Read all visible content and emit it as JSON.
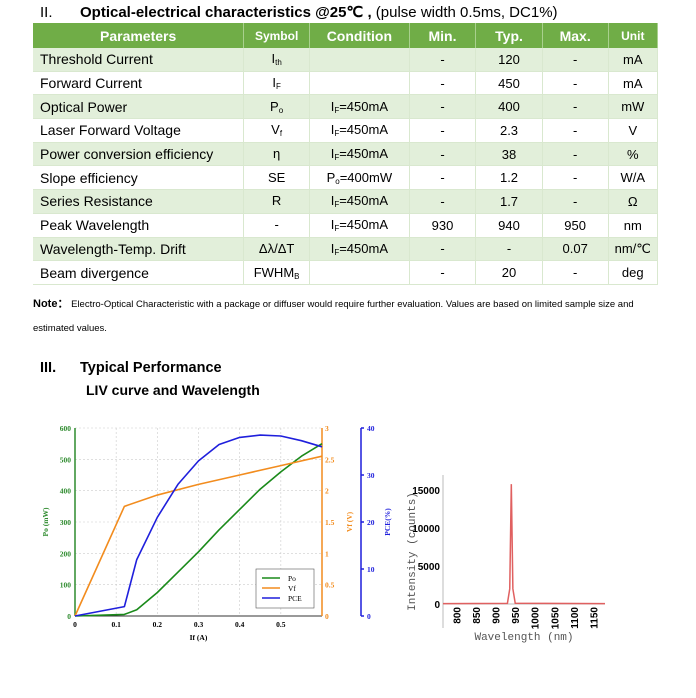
{
  "section2": {
    "number": "II.",
    "title": "Optical-electrical characteristics @25℃ ,",
    "subtitle": " (pulse width 0.5ms, DC1%)"
  },
  "table": {
    "headers": [
      "Parameters",
      "Symbol",
      "Condition",
      "Min.",
      "Typ.",
      "Max.",
      "Unit"
    ],
    "header_color": "#70ad47",
    "alt_row_color": "#e2efda",
    "rows": [
      {
        "param": "Threshold Current",
        "sym": "I",
        "symsub": "th",
        "cond": "",
        "condsub": "",
        "condrest": "",
        "min": "-",
        "typ": "120",
        "max": "-",
        "unit": "mA"
      },
      {
        "param": "Forward Current",
        "sym": "I",
        "symsub": "F",
        "cond": "",
        "condsub": "",
        "condrest": "",
        "min": "-",
        "typ": "450",
        "max": "-",
        "unit": "mA"
      },
      {
        "param": "Optical Power",
        "sym": "P",
        "symsub": "o",
        "cond": "I",
        "condsub": "F",
        "condrest": "=450mA",
        "min": "-",
        "typ": "400",
        "max": "-",
        "unit": "mW"
      },
      {
        "param": "Laser Forward Voltage",
        "sym": "V",
        "symsub": "f",
        "cond": "I",
        "condsub": "F",
        "condrest": "=450mA",
        "min": "-",
        "typ": "2.3",
        "max": "-",
        "unit": "V"
      },
      {
        "param": "Power conversion efficiency",
        "sym": "η",
        "symsub": "",
        "cond": "I",
        "condsub": "F",
        "condrest": "=450mA",
        "min": "-",
        "typ": "38",
        "max": "-",
        "unit": "%"
      },
      {
        "param": "Slope efficiency",
        "sym": "SE",
        "symsub": "",
        "cond": "P",
        "condsub": "o",
        "condrest": "=400mW",
        "min": "-",
        "typ": "1.2",
        "max": "-",
        "unit": "W/A"
      },
      {
        "param": "Series Resistance",
        "sym": "R",
        "symsub": "",
        "cond": "I",
        "condsub": "F",
        "condrest": "=450mA",
        "min": "-",
        "typ": "1.7",
        "max": "-",
        "unit": "Ω"
      },
      {
        "param": "Peak Wavelength",
        "sym": "-",
        "symsub": "",
        "cond": "I",
        "condsub": "F",
        "condrest": "=450mA",
        "min": "930",
        "typ": "940",
        "max": "950",
        "unit": "nm"
      },
      {
        "param": "Wavelength-Temp. Drift",
        "sym": "Δλ/ΔT",
        "symsub": "",
        "cond": "I",
        "condsub": "F",
        "condrest": "=450mA",
        "min": "-",
        "typ": "-",
        "max": "0.07",
        "unit": "nm/℃"
      },
      {
        "param": "Beam divergence",
        "sym": "FWHM",
        "symsub": "B",
        "cond": "",
        "condsub": "",
        "condrest": "",
        "min": "-",
        "typ": "20",
        "max": "-",
        "unit": "deg"
      }
    ]
  },
  "note": {
    "label": "Note：",
    "text": " Electro-Optical Characteristic with a package or diffuser would require further evaluation. Values are based on limited sample size and estimated values."
  },
  "section3": {
    "number": "III.",
    "title": "Typical Performance",
    "subtitle": "LIV curve and Wavelength"
  },
  "chart_data": [
    {
      "type": "line",
      "xlabel": "If (A)",
      "xlim": [
        0,
        0.6
      ],
      "xticks": [
        "0",
        "0.1",
        "0.2",
        "0.3",
        "0.4",
        "0.5"
      ],
      "grid": true,
      "legend": "bottom-right",
      "axes": [
        {
          "label": "Po (mW)",
          "side": "left",
          "lim": [
            0,
            600
          ],
          "ticks": [
            "0",
            "100",
            "200",
            "300",
            "400",
            "500",
            "600"
          ],
          "color": "#2e8b2e"
        },
        {
          "label": "Vf (V)",
          "side": "right",
          "lim": [
            0,
            3
          ],
          "ticks": [
            "0",
            "0.5",
            "1",
            "1.5",
            "2",
            "2.5",
            "3"
          ],
          "color": "#f28c1e"
        },
        {
          "label": "PCE(%)",
          "side": "right-outer",
          "lim": [
            0,
            40
          ],
          "ticks": [
            "0",
            "10",
            "20",
            "30",
            "40"
          ],
          "color": "#1f1fdc"
        }
      ],
      "series": [
        {
          "name": "Po",
          "axis": 0,
          "color": "#1a8a1a",
          "x": [
            0,
            0.12,
            0.15,
            0.2,
            0.25,
            0.3,
            0.35,
            0.4,
            0.45,
            0.5,
            0.55,
            0.6
          ],
          "y": [
            0,
            5,
            20,
            75,
            140,
            205,
            275,
            340,
            405,
            460,
            510,
            550
          ]
        },
        {
          "name": "Vf",
          "axis": 1,
          "color": "#f28c1e",
          "x": [
            0,
            0.12,
            0.2,
            0.3,
            0.4,
            0.5,
            0.6
          ],
          "y": [
            0,
            1.75,
            1.93,
            2.1,
            2.25,
            2.4,
            2.55
          ]
        },
        {
          "name": "PCE",
          "axis": 2,
          "color": "#1f1fdc",
          "x": [
            0,
            0.12,
            0.15,
            0.2,
            0.25,
            0.3,
            0.35,
            0.4,
            0.45,
            0.5,
            0.55,
            0.6
          ],
          "y": [
            0,
            2,
            12,
            21,
            28,
            33,
            36.5,
            38,
            38.5,
            38.3,
            37.3,
            36
          ]
        }
      ]
    },
    {
      "type": "line",
      "xlabel": "Wavelength (nm)",
      "ylabel": "Intensity (counts)",
      "xlim": [
        765,
        1180
      ],
      "ylim": [
        0,
        17000
      ],
      "xticks": [
        "800",
        "850",
        "900",
        "950",
        "1000",
        "1050",
        "1100",
        "1150"
      ],
      "yticks": [
        "0",
        "5000",
        "10000",
        "15000"
      ],
      "color": "#e06060",
      "series": [
        {
          "x": [
            765,
            930,
            936,
            940,
            944,
            950,
            1180
          ],
          "y": [
            50,
            80,
            2000,
            15800,
            2000,
            100,
            50
          ]
        }
      ]
    }
  ]
}
